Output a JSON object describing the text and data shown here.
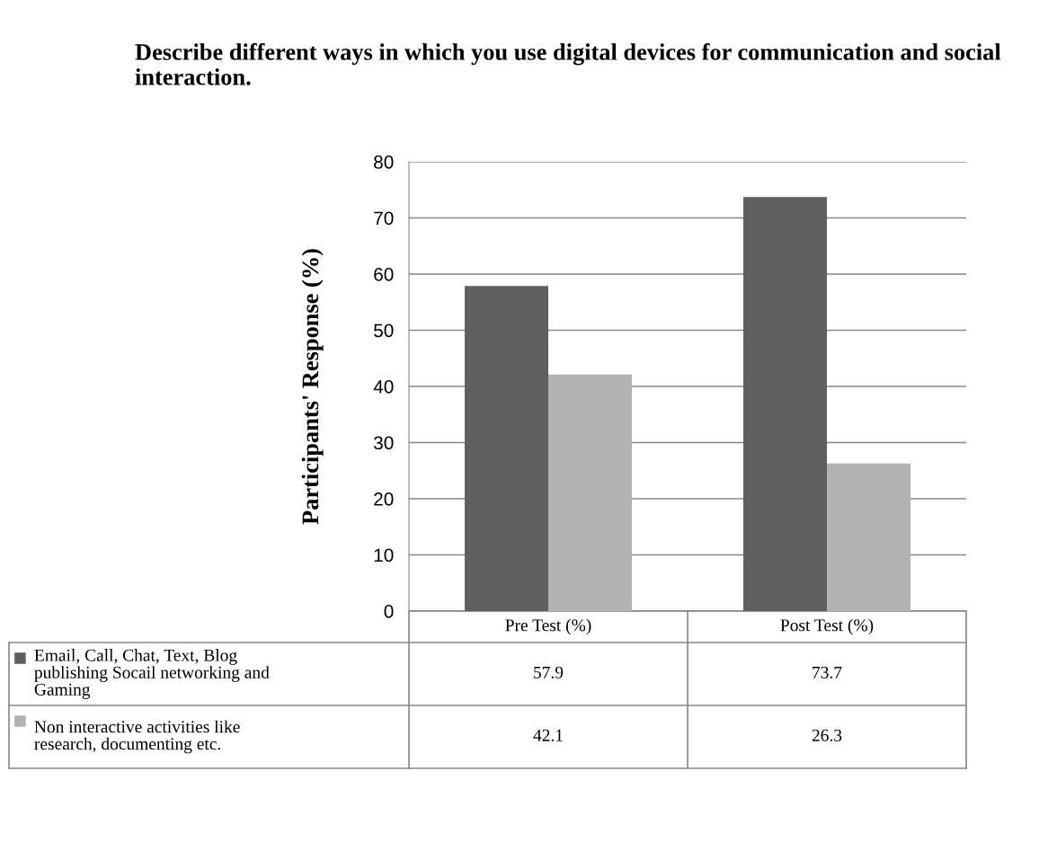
{
  "chart_data": {
    "type": "bar",
    "title": "Describe different ways in which you use digital devices for communication and social interaction.",
    "ylabel": "Participants' Response (%)",
    "categories": [
      "Pre Test (%)",
      "Post Test (%)"
    ],
    "series": [
      {
        "name": "Email, Call, Chat, Text, Blog publishing Socail networking and Gaming",
        "color": "#5f5f5f",
        "values": [
          57.9,
          73.7
        ]
      },
      {
        "name": "Non interactive activities like research, documenting etc.",
        "color": "#b2b2b2",
        "values": [
          42.1,
          26.3
        ]
      }
    ],
    "ylim": [
      0,
      80
    ],
    "yticks": [
      0,
      10,
      20,
      30,
      40,
      50,
      60,
      70,
      80
    ],
    "grid": "y",
    "legend": "bottom left",
    "data_labels": true
  }
}
